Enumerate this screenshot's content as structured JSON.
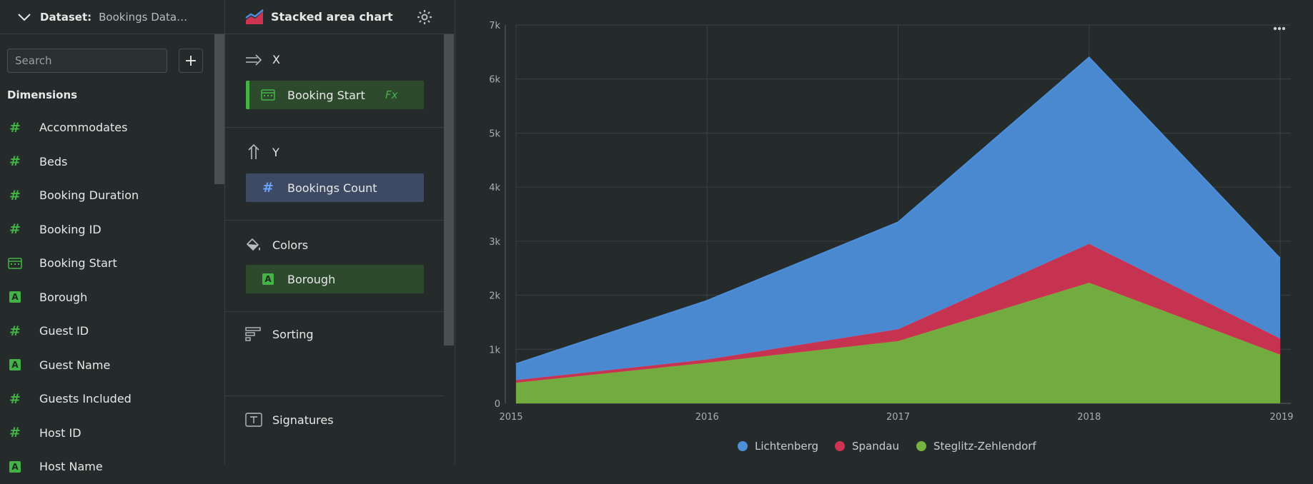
{
  "dataset_panel": {
    "label": "Dataset:",
    "value": "Bookings Data…",
    "search_placeholder": "Search",
    "section_title": "Dimensions",
    "fields": [
      {
        "name": "Accommodates",
        "kind": "number"
      },
      {
        "name": "Beds",
        "kind": "number"
      },
      {
        "name": "Booking Duration",
        "kind": "number"
      },
      {
        "name": "Booking ID",
        "kind": "number"
      },
      {
        "name": "Booking Start",
        "kind": "date"
      },
      {
        "name": "Borough",
        "kind": "text"
      },
      {
        "name": "Guest ID",
        "kind": "number"
      },
      {
        "name": "Guest Name",
        "kind": "text"
      },
      {
        "name": "Guests Included",
        "kind": "number"
      },
      {
        "name": "Host ID",
        "kind": "number"
      },
      {
        "name": "Host Name",
        "kind": "text"
      }
    ]
  },
  "chart_panel": {
    "chart_type": "Stacked area chart",
    "sections": {
      "x": {
        "title": "X",
        "field": "Booking Start",
        "fx": "Fx"
      },
      "y": {
        "title": "Y",
        "field": "Bookings Count"
      },
      "colors": {
        "title": "Colors",
        "field": "Borough"
      },
      "sorting": {
        "title": "Sorting"
      },
      "signatures": {
        "title": "Signatures"
      }
    }
  },
  "colors": {
    "lichtenberg": "#4c8ed9",
    "spandau": "#cd3452",
    "steglitz": "#76b240",
    "accent_green": "#44b346"
  },
  "chart_data": {
    "type": "area",
    "stacked": true,
    "x": [
      "2015",
      "2016",
      "2017",
      "2018",
      "2019"
    ],
    "series": [
      {
        "name": "Steglitz-Zehlendorf",
        "values": [
          380,
          750,
          1150,
          2230,
          900
        ]
      },
      {
        "name": "Spandau",
        "values": [
          50,
          60,
          220,
          720,
          300
        ]
      },
      {
        "name": "Lichtenberg",
        "values": [
          300,
          1090,
          1980,
          3450,
          1480
        ]
      }
    ],
    "legend": [
      "Lichtenberg",
      "Spandau",
      "Steglitz-Zehlendorf"
    ],
    "y_ticks": [
      "0",
      "1k",
      "2k",
      "3k",
      "4k",
      "5k",
      "6k",
      "7k"
    ],
    "ylim": [
      0,
      7000
    ],
    "grid": true,
    "legend_position": "bottom"
  }
}
